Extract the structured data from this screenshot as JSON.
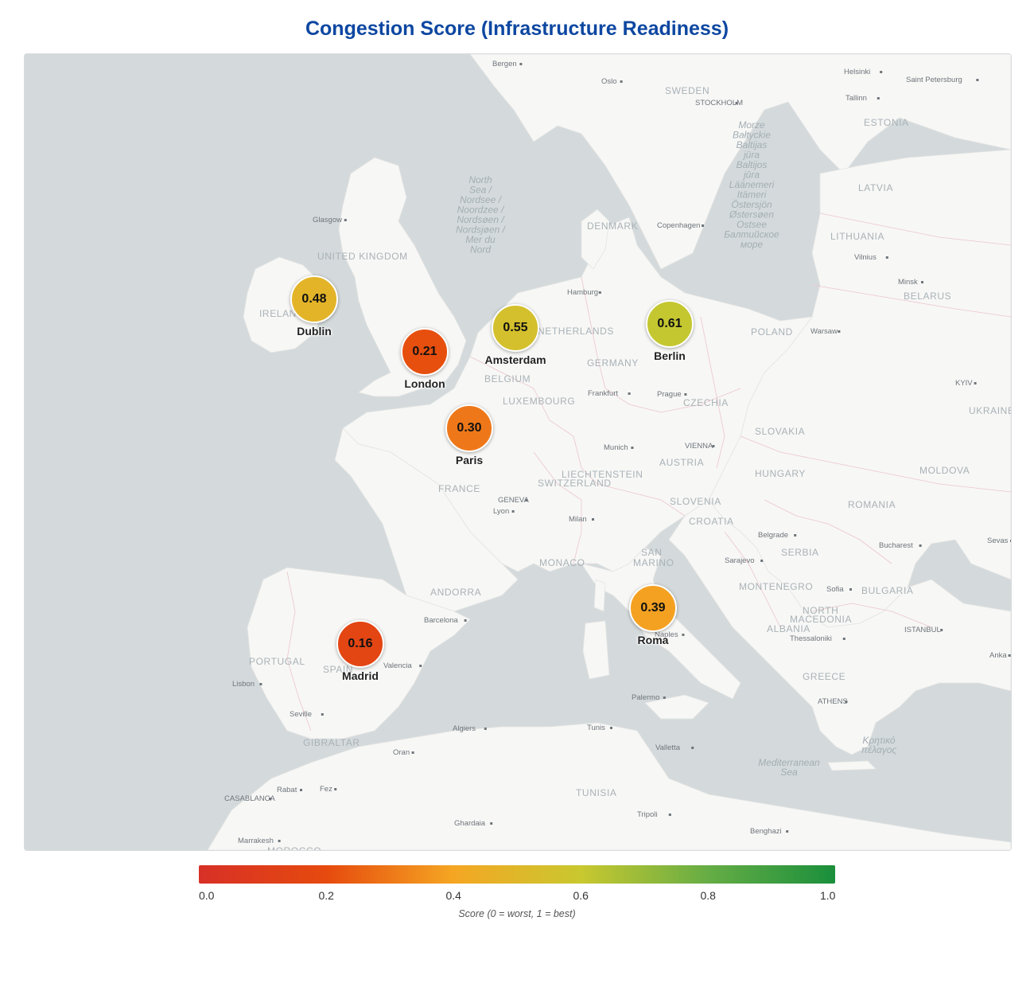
{
  "title": "Congestion Score (Infrastructure Readiness)",
  "map": {
    "country_labels": [
      {
        "id": "sweden",
        "text": "SWEDEN"
      },
      {
        "id": "estonia",
        "text": "ESTONIA"
      },
      {
        "id": "latvia",
        "text": "LATVIA"
      },
      {
        "id": "lithuania",
        "text": "LITHUANIA"
      },
      {
        "id": "belarus",
        "text": "BELARUS"
      },
      {
        "id": "denmark",
        "text": "DENMARK"
      },
      {
        "id": "united-kingdom",
        "text": "UNITED KINGDOM"
      },
      {
        "id": "ireland",
        "text": "IRELAND"
      },
      {
        "id": "poland",
        "text": "POLAND"
      },
      {
        "id": "germany",
        "text": "GERMANY"
      },
      {
        "id": "belgium",
        "text": "BELGIUM"
      },
      {
        "id": "netherlands",
        "text": "NETHERLANDS"
      },
      {
        "id": "luxembourg",
        "text": "LUXEMBOURG"
      },
      {
        "id": "czechia",
        "text": "CZECHIA"
      },
      {
        "id": "slovakia",
        "text": "SLOVAKIA"
      },
      {
        "id": "ukraine",
        "text": "UKRAINE"
      },
      {
        "id": "austria",
        "text": "AUSTRIA"
      },
      {
        "id": "liechtenstein",
        "text": "LIECHTENSTEIN"
      },
      {
        "id": "switzerland",
        "text": "SWITZERLAND"
      },
      {
        "id": "france",
        "text": "FRANCE"
      },
      {
        "id": "hungary",
        "text": "HUNGARY"
      },
      {
        "id": "moldova",
        "text": "MOLDOVA"
      },
      {
        "id": "slovenia",
        "text": "SLOVENIA"
      },
      {
        "id": "croatia",
        "text": "CROATIA"
      },
      {
        "id": "romania",
        "text": "ROMANIA"
      },
      {
        "id": "serbia",
        "text": "SERBIA"
      },
      {
        "id": "monaco",
        "text": "MONACO"
      },
      {
        "id": "san",
        "text": "SAN"
      },
      {
        "id": "marino",
        "text": "MARINO"
      },
      {
        "id": "andorra",
        "text": "ANDORRA"
      },
      {
        "id": "montenegro",
        "text": "MONTENEGRO"
      },
      {
        "id": "bulgaria",
        "text": "BULGARIA"
      },
      {
        "id": "north",
        "text": "NORTH"
      },
      {
        "id": "macedonia",
        "text": "MACEDONIA"
      },
      {
        "id": "albania",
        "text": "ALBANIA"
      },
      {
        "id": "portugal",
        "text": "PORTUGAL"
      },
      {
        "id": "spain",
        "text": "SPAIN"
      },
      {
        "id": "greece",
        "text": "GREECE"
      },
      {
        "id": "gibraltar",
        "text": "GIBRALTAR"
      },
      {
        "id": "tunisia",
        "text": "TUNISIA"
      },
      {
        "id": "morocco",
        "text": "MOROCCO"
      }
    ],
    "city_labels": [
      {
        "id": "bergen",
        "text": "Bergen"
      },
      {
        "id": "oslo",
        "text": "Oslo"
      },
      {
        "id": "stockholm",
        "text": "STOCKHOLM"
      },
      {
        "id": "helsinki",
        "text": "Helsinki"
      },
      {
        "id": "saint-petersburg",
        "text": "Saint Petersburg"
      },
      {
        "id": "tallinn",
        "text": "Tallinn"
      },
      {
        "id": "glasgow",
        "text": "Glasgow"
      },
      {
        "id": "copenhagen",
        "text": "Copenhagen"
      },
      {
        "id": "vilnius",
        "text": "Vilnius"
      },
      {
        "id": "minsk",
        "text": "Minsk"
      },
      {
        "id": "hamburg",
        "text": "Hamburg"
      },
      {
        "id": "warsaw",
        "text": "Warsaw"
      },
      {
        "id": "kyiv",
        "text": "KYIV"
      },
      {
        "id": "frankfurt",
        "text": "Frankfurt"
      },
      {
        "id": "prague",
        "text": "Prague"
      },
      {
        "id": "munich",
        "text": "Munich"
      },
      {
        "id": "vienna",
        "text": "VIENNA"
      },
      {
        "id": "geneva",
        "text": "GENEVA"
      },
      {
        "id": "lyon",
        "text": "Lyon"
      },
      {
        "id": "milan",
        "text": "Milan"
      },
      {
        "id": "belgrade",
        "text": "Belgrade"
      },
      {
        "id": "bucharest",
        "text": "Bucharest"
      },
      {
        "id": "sevastopol",
        "text": "Sevas"
      },
      {
        "id": "sarajevo",
        "text": "Sarajevo"
      },
      {
        "id": "sofia",
        "text": "Sofia"
      },
      {
        "id": "barcelona",
        "text": "Barcelona"
      },
      {
        "id": "naples",
        "text": "Naples"
      },
      {
        "id": "istanbul",
        "text": "ISTANBUL"
      },
      {
        "id": "thessaloniki",
        "text": "Thessaloniki"
      },
      {
        "id": "valencia",
        "text": "Valencia"
      },
      {
        "id": "lisbon",
        "text": "Lisbon"
      },
      {
        "id": "ankara",
        "text": "Anka"
      },
      {
        "id": "palermo",
        "text": "Palermo"
      },
      {
        "id": "athens",
        "text": "ATHENS"
      },
      {
        "id": "seville",
        "text": "Seville"
      },
      {
        "id": "algiers",
        "text": "Algiers"
      },
      {
        "id": "tunis",
        "text": "Tunis"
      },
      {
        "id": "oran",
        "text": "Oran"
      },
      {
        "id": "valletta",
        "text": "Valletta"
      },
      {
        "id": "rabat",
        "text": "Rabat"
      },
      {
        "id": "fez",
        "text": "Fez"
      },
      {
        "id": "casablanca",
        "text": "CASABLANCA"
      },
      {
        "id": "ghardaia",
        "text": "Ghardaia"
      },
      {
        "id": "tripoli",
        "text": "Tripoli"
      },
      {
        "id": "benghazi",
        "text": "Benghazi"
      },
      {
        "id": "marrakesh",
        "text": "Marrakesh"
      }
    ],
    "water_labels": [
      {
        "id": "north-sea",
        "lines": [
          "North",
          "Sea /",
          "Nordsee /",
          "Noordzee /",
          "Nordsøen /",
          "Nordsjøen /",
          "Mer du",
          "Nord"
        ]
      },
      {
        "id": "baltic-sea",
        "lines": [
          "Morze",
          "Bałtyckie",
          "Baltijas",
          "jūra",
          "Baltijos",
          "jūra",
          "Läänemeri",
          "Itämeri",
          "Östersjön",
          "Østersøen",
          "Ostsee",
          "Балтийское",
          "море"
        ]
      },
      {
        "id": "mediterranean",
        "lines": [
          "Mediterranean",
          "Sea"
        ]
      },
      {
        "id": "cretan-sea",
        "lines": [
          "Κρητικό",
          "πέλαγος"
        ]
      }
    ]
  },
  "markers": [
    {
      "id": "dublin",
      "city": "Dublin",
      "score": 0.48,
      "label": "0.48"
    },
    {
      "id": "london",
      "city": "London",
      "score": 0.21,
      "label": "0.21"
    },
    {
      "id": "amsterdam",
      "city": "Amsterdam",
      "score": 0.55,
      "label": "0.55"
    },
    {
      "id": "berlin",
      "city": "Berlin",
      "score": 0.61,
      "label": "0.61"
    },
    {
      "id": "paris",
      "city": "Paris",
      "score": 0.3,
      "label": "0.30"
    },
    {
      "id": "roma",
      "city": "Roma",
      "score": 0.39,
      "label": "0.39"
    },
    {
      "id": "madrid",
      "city": "Madrid",
      "score": 0.16,
      "label": "0.16"
    }
  ],
  "legend": {
    "min": 0.0,
    "max": 1.0,
    "ticks": [
      "0.0",
      "0.2",
      "0.4",
      "0.6",
      "0.8",
      "1.0"
    ],
    "caption": "Score (0 = worst, 1 = best)",
    "colors": [
      "#d73027",
      "#e64a0e",
      "#f5a623",
      "#c9c82f",
      "#66ad45",
      "#1a8f3c"
    ]
  }
}
